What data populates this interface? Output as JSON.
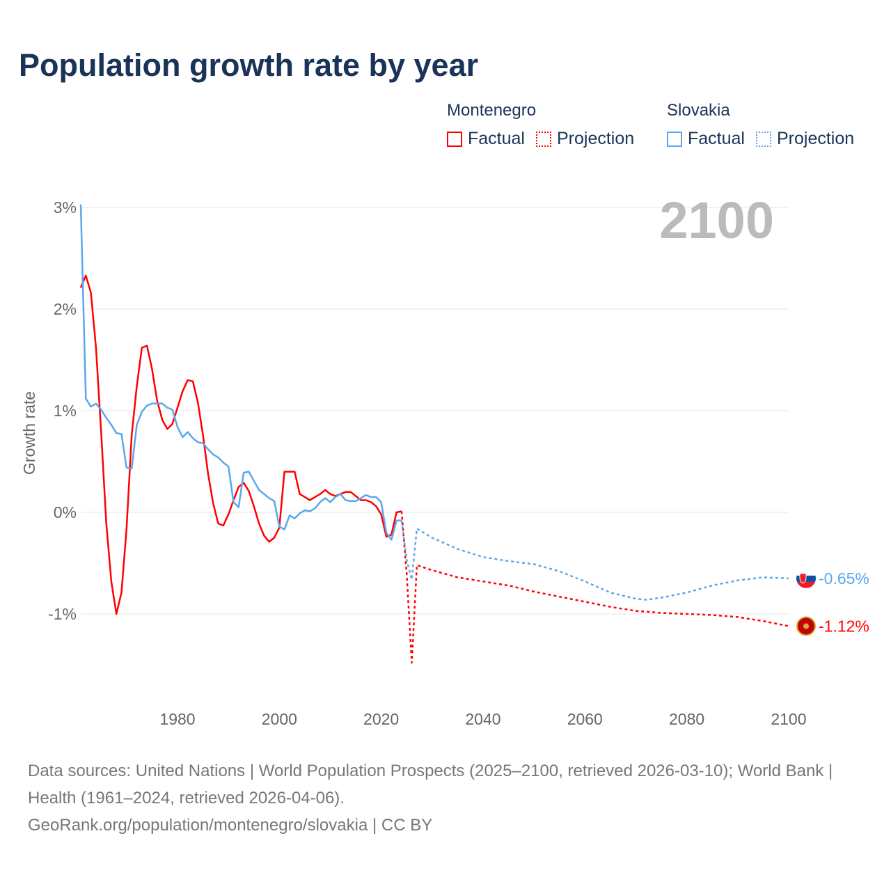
{
  "title": "Population growth rate by year",
  "legend": {
    "groups": [
      {
        "name": "Montenegro",
        "color": "#ff0000",
        "factual": "Factual",
        "projection": "Projection"
      },
      {
        "name": "Slovakia",
        "color": "#5aa7ee",
        "factual": "Factual",
        "projection": "Projection"
      }
    ]
  },
  "year_label": "2100",
  "footer": {
    "sources": "Data sources: United Nations | World Population Prospects (2025–2100, retrieved 2026-03-10); World Bank | Health (1961–2024, retrieved 2026-04-06).",
    "link": "GeoRank.org/population/montenegro/slovakia | CC BY"
  },
  "chart_data": {
    "type": "line",
    "title": "Population growth rate by year",
    "xlabel": "",
    "ylabel": "Growth rate",
    "xlim": [
      1961,
      2100
    ],
    "ylim": [
      -1.5,
      3
    ],
    "xticks": [
      1980,
      2000,
      2020,
      2040,
      2060,
      2080,
      2100
    ],
    "xtick_labels": [
      "1980",
      "2000",
      "2020",
      "2040",
      "2060",
      "2080",
      "2100"
    ],
    "yticks": [
      3,
      2,
      1,
      0,
      -1
    ],
    "ytick_labels": [
      "3%",
      "2%",
      "1%",
      "0%",
      "-1%"
    ],
    "grid": true,
    "series": [
      {
        "name": "Montenegro Factual",
        "country": "Montenegro",
        "kind": "factual",
        "color": "#ff0000",
        "x": [
          1961,
          1962,
          1963,
          1964,
          1965,
          1966,
          1967,
          1968,
          1969,
          1970,
          1971,
          1972,
          1973,
          1974,
          1975,
          1976,
          1977,
          1978,
          1979,
          1980,
          1981,
          1982,
          1983,
          1984,
          1985,
          1986,
          1987,
          1988,
          1989,
          1990,
          1991,
          1992,
          1993,
          1994,
          1995,
          1996,
          1997,
          1998,
          1999,
          2000,
          2001,
          2002,
          2003,
          2004,
          2005,
          2006,
          2007,
          2008,
          2009,
          2010,
          2011,
          2012,
          2013,
          2014,
          2015,
          2016,
          2017,
          2018,
          2019,
          2020,
          2021,
          2022,
          2023,
          2024
        ],
        "y": [
          2.21,
          2.33,
          2.16,
          1.62,
          0.79,
          -0.1,
          -0.68,
          -1.0,
          -0.79,
          -0.16,
          0.76,
          1.24,
          1.62,
          1.64,
          1.41,
          1.1,
          0.91,
          0.82,
          0.87,
          1.03,
          1.19,
          1.3,
          1.29,
          1.08,
          0.76,
          0.38,
          0.09,
          -0.11,
          -0.13,
          -0.02,
          0.12,
          0.25,
          0.29,
          0.21,
          0.06,
          -0.11,
          -0.23,
          -0.29,
          -0.25,
          -0.15,
          0.4,
          0.4,
          0.4,
          0.18,
          0.15,
          0.12,
          0.15,
          0.18,
          0.22,
          0.18,
          0.16,
          0.18,
          0.2,
          0.2,
          0.16,
          0.12,
          0.12,
          0.1,
          0.06,
          -0.02,
          -0.24,
          -0.22,
          0.0,
          0.01
        ]
      },
      {
        "name": "Montenegro Projection",
        "country": "Montenegro",
        "kind": "projection",
        "color": "#ff0000",
        "x": [
          2024,
          2025,
          2026,
          2027,
          2030,
          2035,
          2040,
          2045,
          2050,
          2055,
          2060,
          2065,
          2070,
          2075,
          2080,
          2085,
          2090,
          2095,
          2100
        ],
        "y": [
          0.01,
          -0.6,
          -1.48,
          -0.52,
          -0.57,
          -0.64,
          -0.68,
          -0.72,
          -0.78,
          -0.83,
          -0.88,
          -0.93,
          -0.97,
          -0.99,
          -1.0,
          -1.01,
          -1.03,
          -1.07,
          -1.12
        ]
      },
      {
        "name": "Slovakia Factual",
        "country": "Slovakia",
        "kind": "factual",
        "color": "#5aa7ee",
        "x": [
          1961,
          1962,
          1963,
          1964,
          1965,
          1966,
          1967,
          1968,
          1969,
          1970,
          1971,
          1972,
          1973,
          1974,
          1975,
          1976,
          1977,
          1978,
          1979,
          1980,
          1981,
          1982,
          1983,
          1984,
          1985,
          1986,
          1987,
          1988,
          1989,
          1990,
          1991,
          1992,
          1993,
          1994,
          1995,
          1996,
          1997,
          1998,
          1999,
          2000,
          2001,
          2002,
          2003,
          2004,
          2005,
          2006,
          2007,
          2008,
          2009,
          2010,
          2011,
          2012,
          2013,
          2014,
          2015,
          2016,
          2017,
          2018,
          2019,
          2020,
          2021,
          2022,
          2023,
          2024
        ],
        "y": [
          3.03,
          1.12,
          1.04,
          1.07,
          1.01,
          0.93,
          0.86,
          0.78,
          0.77,
          0.44,
          0.43,
          0.86,
          0.99,
          1.05,
          1.07,
          1.07,
          1.07,
          1.03,
          1.01,
          0.84,
          0.74,
          0.79,
          0.73,
          0.69,
          0.68,
          0.62,
          0.57,
          0.54,
          0.49,
          0.45,
          0.1,
          0.05,
          0.39,
          0.4,
          0.31,
          0.22,
          0.18,
          0.14,
          0.11,
          -0.14,
          -0.17,
          -0.03,
          -0.06,
          -0.01,
          0.02,
          0.01,
          0.04,
          0.1,
          0.14,
          0.1,
          0.15,
          0.18,
          0.12,
          0.11,
          0.11,
          0.14,
          0.17,
          0.15,
          0.15,
          0.1,
          -0.2,
          -0.27,
          -0.08,
          -0.08
        ]
      },
      {
        "name": "Slovakia Projection",
        "country": "Slovakia",
        "kind": "projection",
        "color": "#5aa7ee",
        "x": [
          2024,
          2025,
          2026,
          2027,
          2030,
          2035,
          2040,
          2045,
          2050,
          2055,
          2060,
          2065,
          2070,
          2072,
          2075,
          2080,
          2085,
          2090,
          2095,
          2100
        ],
        "y": [
          -0.08,
          -0.47,
          -0.66,
          -0.16,
          -0.25,
          -0.36,
          -0.44,
          -0.48,
          -0.51,
          -0.58,
          -0.68,
          -0.79,
          -0.85,
          -0.86,
          -0.84,
          -0.79,
          -0.72,
          -0.67,
          -0.64,
          -0.65
        ]
      }
    ],
    "end_labels": [
      {
        "country": "Slovakia",
        "text": "-0.65%",
        "color": "#5aa7ee"
      },
      {
        "country": "Montenegro",
        "text": "-1.12%",
        "color": "#ff0000"
      }
    ]
  }
}
